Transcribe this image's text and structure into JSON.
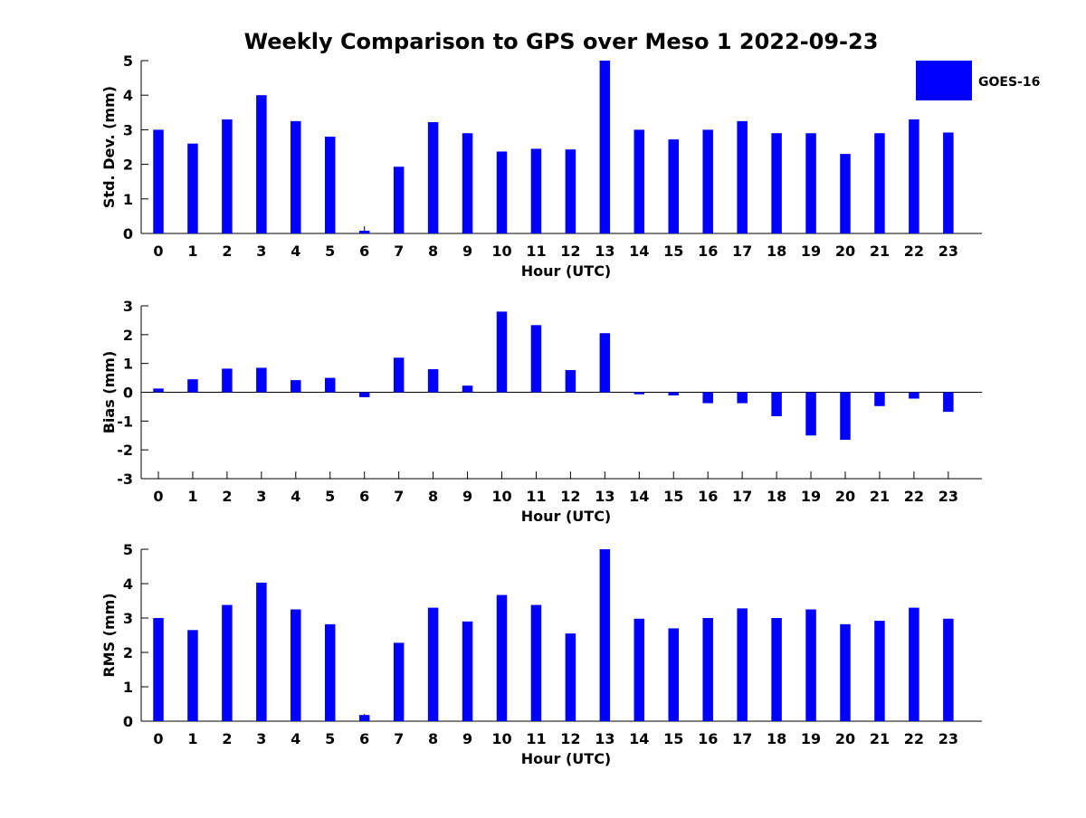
{
  "title": "Weekly Comparison to GPS over Meso 1 2022-09-23",
  "colors": {
    "bar": "#0000ff",
    "axis": "#000000",
    "background": "#ffffff"
  },
  "legend": {
    "label": "GOES-16",
    "placement": "top-right"
  },
  "chart_data": [
    {
      "type": "bar",
      "xlabel": "Hour (UTC)",
      "ylabel": "Std. Dev. (mm)",
      "ylim": [
        0,
        5
      ],
      "yticks": [
        0,
        1,
        2,
        3,
        4,
        5
      ],
      "categories": [
        "0",
        "1",
        "2",
        "3",
        "4",
        "5",
        "6",
        "7",
        "8",
        "9",
        "10",
        "11",
        "12",
        "13",
        "14",
        "15",
        "16",
        "17",
        "18",
        "19",
        "20",
        "21",
        "22",
        "23"
      ],
      "series": [
        {
          "name": "GOES-16",
          "values": [
            3.0,
            2.6,
            3.3,
            4.0,
            3.25,
            2.8,
            0.08,
            1.93,
            3.22,
            2.9,
            2.37,
            2.45,
            2.43,
            5.0,
            3.0,
            2.72,
            3.0,
            3.25,
            2.9,
            2.9,
            2.3,
            2.9,
            3.3,
            2.92
          ]
        }
      ]
    },
    {
      "type": "bar",
      "xlabel": "Hour (UTC)",
      "ylabel": "Bias (mm)",
      "ylim": [
        -3,
        3
      ],
      "yticks": [
        -3,
        -2,
        -1,
        0,
        1,
        2,
        3
      ],
      "categories": [
        "0",
        "1",
        "2",
        "3",
        "4",
        "5",
        "6",
        "7",
        "8",
        "9",
        "10",
        "11",
        "12",
        "13",
        "14",
        "15",
        "16",
        "17",
        "18",
        "19",
        "20",
        "21",
        "22",
        "23"
      ],
      "series": [
        {
          "name": "GOES-16",
          "values": [
            0.13,
            0.45,
            0.82,
            0.85,
            0.42,
            0.5,
            -0.17,
            1.2,
            0.8,
            0.23,
            2.8,
            2.33,
            0.77,
            2.05,
            -0.07,
            -0.11,
            -0.38,
            -0.38,
            -0.83,
            -1.5,
            -1.65,
            -0.48,
            -0.22,
            -0.68
          ]
        }
      ]
    },
    {
      "type": "bar",
      "xlabel": "Hour (UTC)",
      "ylabel": "RMS (mm)",
      "ylim": [
        0,
        5
      ],
      "yticks": [
        0,
        1,
        2,
        3,
        4,
        5
      ],
      "categories": [
        "0",
        "1",
        "2",
        "3",
        "4",
        "5",
        "6",
        "7",
        "8",
        "9",
        "10",
        "11",
        "12",
        "13",
        "14",
        "15",
        "16",
        "17",
        "18",
        "19",
        "20",
        "21",
        "22",
        "23"
      ],
      "series": [
        {
          "name": "GOES-16",
          "values": [
            3.0,
            2.65,
            3.38,
            4.03,
            3.25,
            2.82,
            0.18,
            2.28,
            3.3,
            2.9,
            3.67,
            3.38,
            2.55,
            5.0,
            2.98,
            2.7,
            3.0,
            3.28,
            3.0,
            3.25,
            2.82,
            2.92,
            3.3,
            2.98
          ]
        }
      ]
    }
  ]
}
